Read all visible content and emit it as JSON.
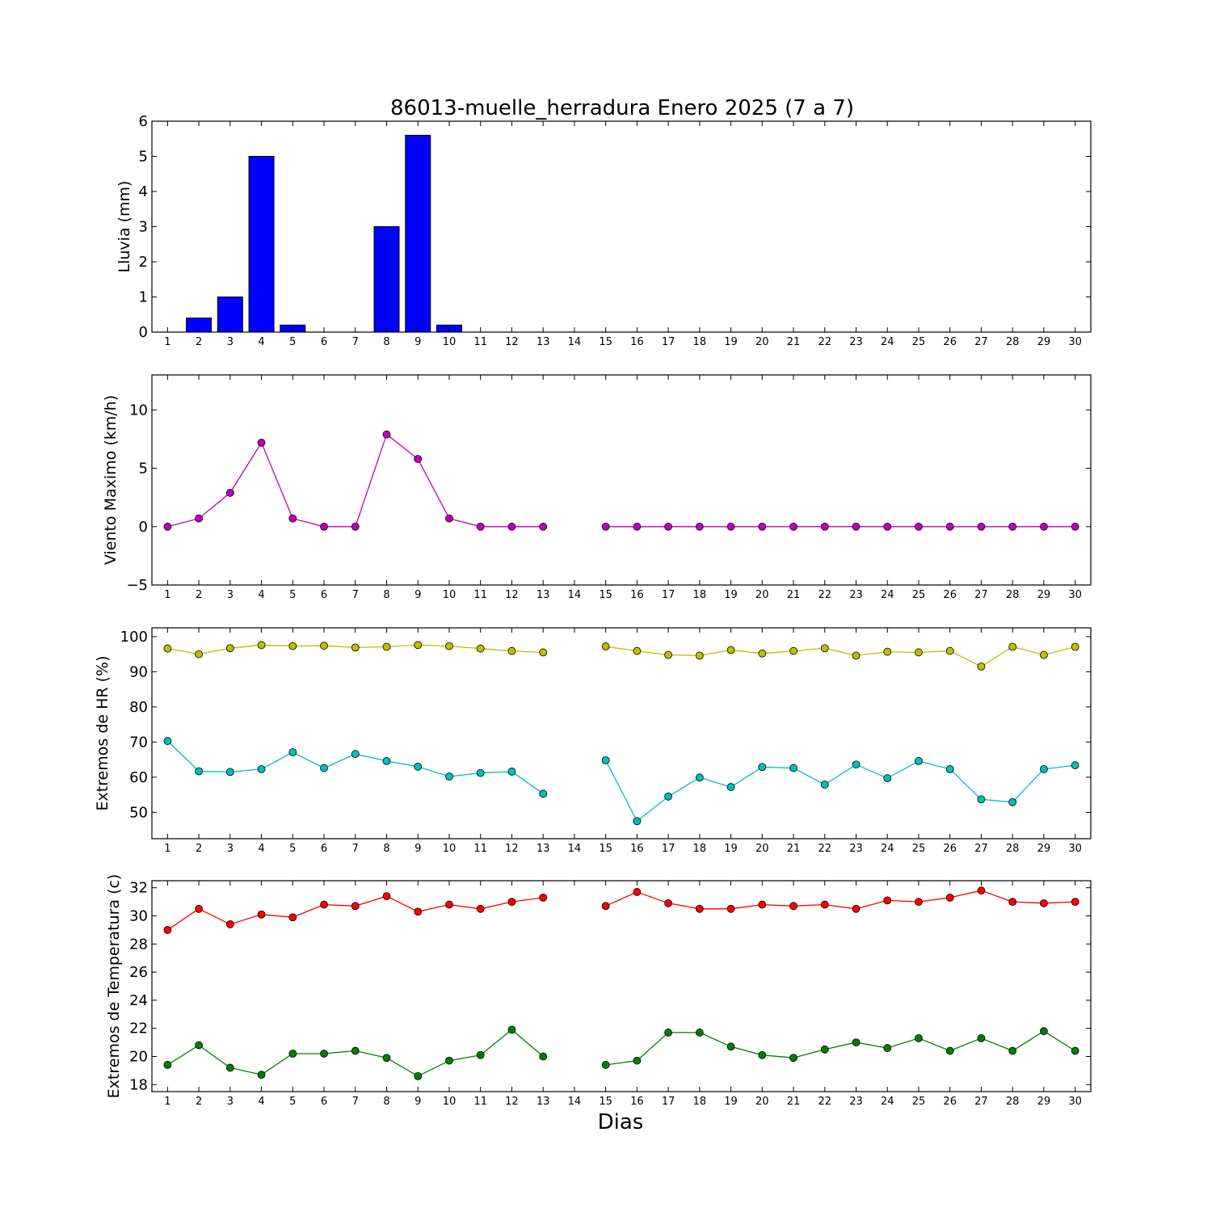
{
  "title": "86013-muelle_herradura Enero 2025  (7 a 7)",
  "xlabel": "Dias",
  "chart_data": [
    {
      "type": "bar",
      "ylabel": "Lluvia (mm)",
      "x": [
        1,
        2,
        3,
        4,
        5,
        6,
        7,
        8,
        9,
        10,
        11,
        12,
        13,
        14,
        15,
        16,
        17,
        18,
        19,
        20,
        21,
        22,
        23,
        24,
        25,
        26,
        27,
        28,
        29,
        30
      ],
      "ylim": [
        0,
        6
      ],
      "yticks": [
        0,
        1,
        2,
        3,
        4,
        5,
        6
      ],
      "series": [
        {
          "color": "#0000ff",
          "values": [
            0,
            0.4,
            1.0,
            5.0,
            0.2,
            0,
            0,
            3.0,
            5.6,
            0.2,
            0,
            0,
            0,
            0,
            0,
            0,
            0,
            0,
            0,
            0,
            0,
            0,
            0,
            0,
            0,
            0,
            0,
            0,
            0,
            0
          ]
        }
      ]
    },
    {
      "type": "line",
      "ylabel": "Viento Maximo (km/h)",
      "x": [
        1,
        2,
        3,
        4,
        5,
        6,
        7,
        8,
        9,
        10,
        11,
        12,
        13,
        14,
        15,
        16,
        17,
        18,
        19,
        20,
        21,
        22,
        23,
        24,
        25,
        26,
        27,
        28,
        29,
        30
      ],
      "ylim": [
        -5,
        13
      ],
      "yticks": [
        -5,
        0,
        5,
        10
      ],
      "ytick_labels": [
        "−5",
        "0",
        "5",
        "10"
      ],
      "series": [
        {
          "color": "#bf00bf",
          "values": [
            0,
            0.7,
            2.9,
            7.2,
            0.7,
            0,
            0,
            7.9,
            5.8,
            0.7,
            0,
            0,
            0,
            null,
            0,
            0,
            0,
            0,
            0,
            0,
            0,
            0,
            0,
            0,
            0,
            0,
            0,
            0,
            0,
            0
          ]
        }
      ]
    },
    {
      "type": "line",
      "ylabel": "Extremos de HR (%)",
      "x": [
        1,
        2,
        3,
        4,
        5,
        6,
        7,
        8,
        9,
        10,
        11,
        12,
        13,
        14,
        15,
        16,
        17,
        18,
        19,
        20,
        21,
        22,
        23,
        24,
        25,
        26,
        27,
        28,
        29,
        30
      ],
      "ylim": [
        42.5,
        102.5
      ],
      "yticks": [
        50,
        60,
        70,
        80,
        90,
        100
      ],
      "series": [
        {
          "color": "#bfbf00",
          "values": [
            96.6,
            95.0,
            96.7,
            97.6,
            97.3,
            97.4,
            96.9,
            97.1,
            97.6,
            97.3,
            96.6,
            95.9,
            95.5,
            null,
            97.2,
            95.9,
            94.8,
            94.6,
            96.2,
            95.2,
            95.9,
            96.7,
            94.6,
            95.7,
            95.5,
            95.9,
            91.5,
            97.1,
            94.8,
            97.1
          ]
        },
        {
          "color": "#00bfbf",
          "values": [
            70.3,
            61.7,
            61.5,
            62.3,
            67.1,
            62.6,
            66.6,
            64.6,
            63.0,
            60.2,
            61.2,
            61.6,
            55.3,
            null,
            64.8,
            47.5,
            54.5,
            59.9,
            57.2,
            62.9,
            62.6,
            57.9,
            63.6,
            59.7,
            64.6,
            62.3,
            53.7,
            52.9,
            62.3,
            63.4
          ]
        }
      ]
    },
    {
      "type": "line",
      "ylabel": "Extremos de Temperatura (c)",
      "x": [
        1,
        2,
        3,
        4,
        5,
        6,
        7,
        8,
        9,
        10,
        11,
        12,
        13,
        14,
        15,
        16,
        17,
        18,
        19,
        20,
        21,
        22,
        23,
        24,
        25,
        26,
        27,
        28,
        29,
        30
      ],
      "ylim": [
        17.5,
        32.5
      ],
      "yticks": [
        18,
        20,
        22,
        24,
        26,
        28,
        30,
        32
      ],
      "series": [
        {
          "color": "#ff0000",
          "values": [
            29.0,
            30.5,
            29.4,
            30.1,
            29.9,
            30.8,
            30.7,
            31.4,
            30.3,
            30.8,
            30.5,
            31.0,
            31.3,
            null,
            30.7,
            31.7,
            30.9,
            30.5,
            30.5,
            30.8,
            30.7,
            30.8,
            30.5,
            31.1,
            31.0,
            31.3,
            31.8,
            31.0,
            30.9,
            31.0
          ]
        },
        {
          "color": "#008000",
          "values": [
            19.4,
            20.8,
            19.2,
            18.7,
            20.2,
            20.2,
            20.4,
            19.9,
            18.6,
            19.7,
            20.1,
            21.9,
            20.0,
            null,
            19.4,
            19.7,
            21.7,
            21.7,
            20.7,
            20.1,
            19.9,
            20.5,
            21.0,
            20.6,
            21.3,
            20.4,
            21.3,
            20.4,
            21.8,
            20.4
          ]
        }
      ]
    }
  ]
}
